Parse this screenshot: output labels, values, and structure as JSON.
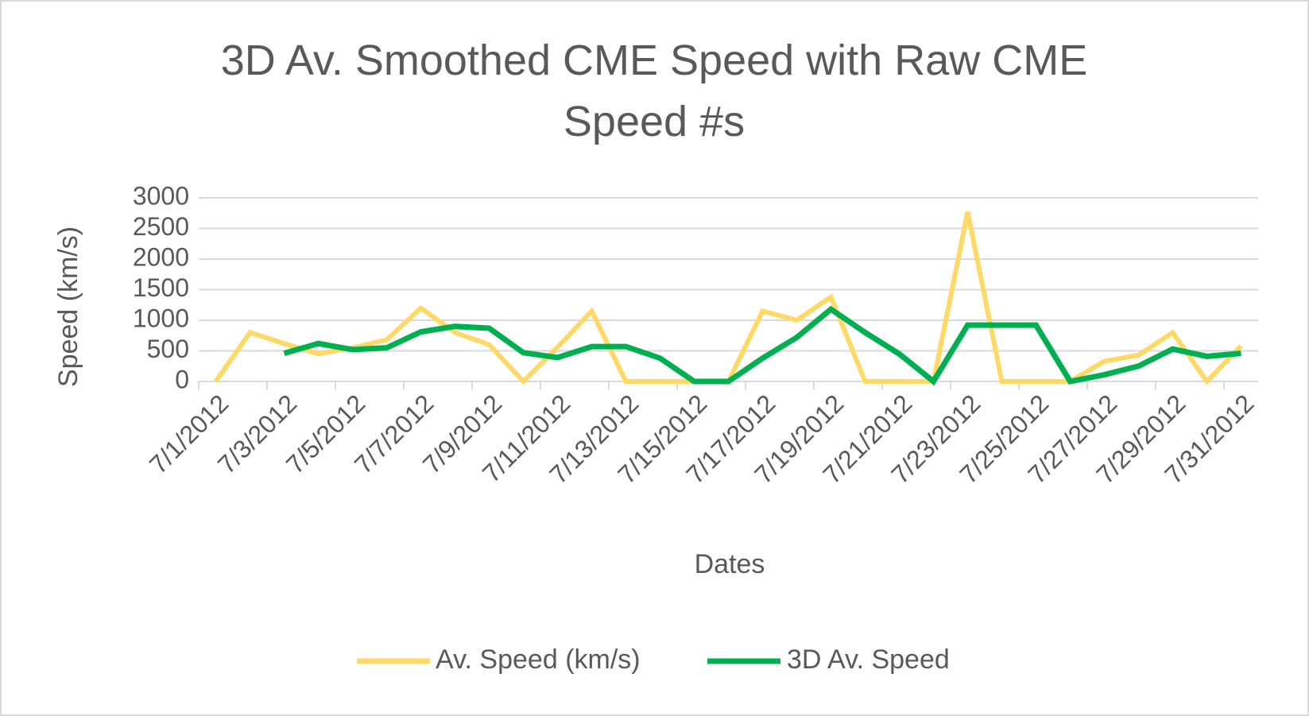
{
  "chart_data": {
    "type": "line",
    "title": "3D Av. Smoothed CME Speed with Raw CME Speed #s",
    "x_label": "Dates",
    "y_label": "Speed (km/s)",
    "categories": [
      "7/1/2012",
      null,
      "7/3/2012",
      null,
      "7/5/2012",
      null,
      "7/7/2012",
      null,
      "7/9/2012",
      null,
      "7/11/2012",
      null,
      "7/13/2012",
      null,
      "7/15/2012",
      null,
      "7/17/2012",
      null,
      "7/19/2012",
      null,
      "7/21/2012",
      null,
      "7/23/2012",
      null,
      "7/25/2012",
      null,
      "7/27/2012",
      null,
      "7/29/2012",
      null,
      "7/31/2012"
    ],
    "series": [
      {
        "name": "Av. Speed (km/s)",
        "color": "#ffd966",
        "values": [
          0,
          800,
          620,
          450,
          550,
          680,
          1200,
          800,
          600,
          0,
          560,
          1150,
          0,
          0,
          0,
          0,
          1150,
          1000,
          1380,
          0,
          0,
          0,
          2770,
          0,
          0,
          0,
          330,
          430,
          800,
          0,
          580
        ]
      },
      {
        "name": "3D Av. Speed",
        "color": "#00b050",
        "values": [
          null,
          null,
          460,
          620,
          520,
          550,
          810,
          900,
          870,
          470,
          390,
          570,
          570,
          380,
          0,
          0,
          380,
          720,
          1180,
          800,
          450,
          0,
          920,
          920,
          920,
          0,
          110,
          250,
          530,
          410,
          460
        ]
      }
    ],
    "ylim": [
      0,
      3000
    ],
    "yticks": [
      0,
      500,
      1000,
      1500,
      2000,
      2500,
      3000
    ],
    "grid": true,
    "legend": "bottom"
  }
}
